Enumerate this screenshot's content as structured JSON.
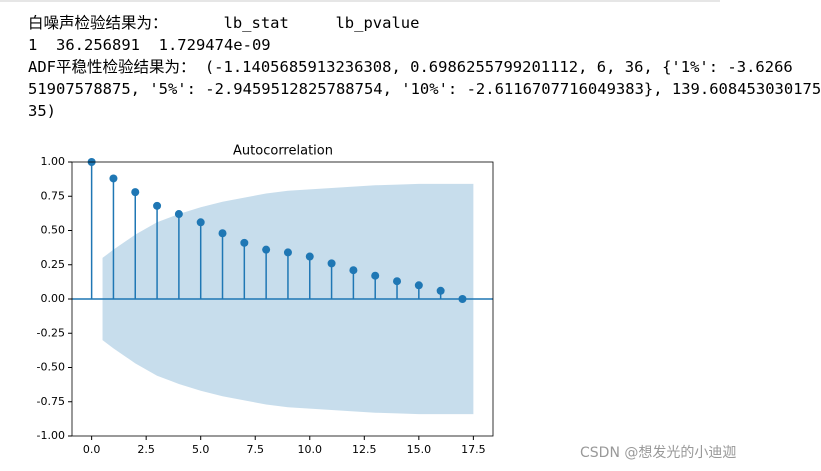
{
  "output_lines": [
    "白噪声检验结果为：      lb_stat     lb_pvalue",
    "1  36.256891  1.729474e-09",
    "ADF平稳性检验结果为： (-1.1405685913236308, 0.6986255799201112, 6, 36, {'1%': -3.6266",
    "51907578875, '5%': -2.9459512825788754, '10%': -2.6116707716049383}, 139.608453030175",
    "35)"
  ],
  "chart_data": {
    "type": "stem",
    "title": "Autocorrelation",
    "x": [
      0,
      1,
      2,
      3,
      4,
      5,
      6,
      7,
      8,
      9,
      10,
      11,
      12,
      13,
      14,
      15,
      16,
      17
    ],
    "values": [
      1.0,
      0.88,
      0.78,
      0.68,
      0.62,
      0.56,
      0.48,
      0.41,
      0.36,
      0.34,
      0.31,
      0.26,
      0.21,
      0.17,
      0.13,
      0.1,
      0.06,
      0.0
    ],
    "color": "#1f77b4",
    "confidence_band": {
      "x": [
        0.5,
        1,
        2,
        3,
        4,
        5,
        6,
        7,
        8,
        9,
        10,
        11,
        12,
        13,
        14,
        15,
        16,
        17,
        17.5
      ],
      "upper": [
        0.3,
        0.36,
        0.47,
        0.56,
        0.62,
        0.67,
        0.71,
        0.74,
        0.77,
        0.79,
        0.8,
        0.81,
        0.82,
        0.83,
        0.835,
        0.84,
        0.84,
        0.84,
        0.84
      ],
      "lower": [
        -0.3,
        -0.36,
        -0.47,
        -0.56,
        -0.62,
        -0.67,
        -0.71,
        -0.74,
        -0.77,
        -0.79,
        -0.8,
        -0.81,
        -0.82,
        -0.83,
        -0.835,
        -0.84,
        -0.84,
        -0.84,
        -0.84
      ]
    },
    "xlim": [
      -0.9,
      18.4
    ],
    "ylim": [
      -1,
      1
    ],
    "xticks": [
      {
        "value": 0,
        "label": "0.0"
      },
      {
        "value": 2.5,
        "label": "2.5"
      },
      {
        "value": 5,
        "label": "5.0"
      },
      {
        "value": 7.5,
        "label": "7.5"
      },
      {
        "value": 10,
        "label": "10.0"
      },
      {
        "value": 12.5,
        "label": "12.5"
      },
      {
        "value": 15,
        "label": "15.0"
      },
      {
        "value": 17.5,
        "label": "17.5"
      }
    ],
    "yticks": [
      {
        "value": 1,
        "label": "1.00"
      },
      {
        "value": 0.75,
        "label": "0.75"
      },
      {
        "value": 0.5,
        "label": "0.50"
      },
      {
        "value": 0.25,
        "label": "0.25"
      },
      {
        "value": 0,
        "label": "0.00"
      },
      {
        "value": -0.25,
        "label": "-0.25"
      },
      {
        "value": -0.5,
        "label": "-0.50"
      },
      {
        "value": -0.75,
        "label": "-0.75"
      },
      {
        "value": -1,
        "label": "-1.00"
      }
    ]
  },
  "watermark": "CSDN @想发光的小迪迦"
}
